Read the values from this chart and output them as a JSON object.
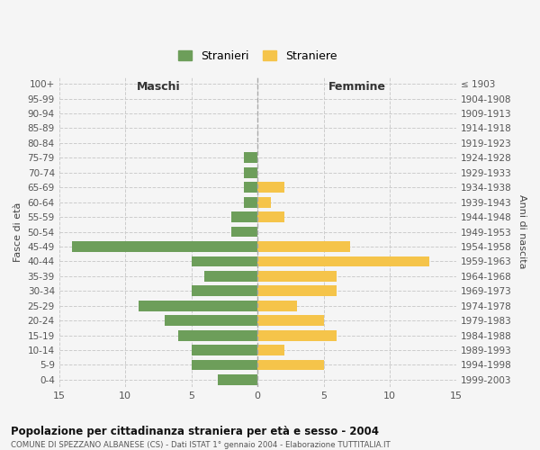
{
  "age_groups": [
    "100+",
    "95-99",
    "90-94",
    "85-89",
    "80-84",
    "75-79",
    "70-74",
    "65-69",
    "60-64",
    "55-59",
    "50-54",
    "45-49",
    "40-44",
    "35-39",
    "30-34",
    "25-29",
    "20-24",
    "15-19",
    "10-14",
    "5-9",
    "0-4"
  ],
  "birth_years": [
    "≤ 1903",
    "1904-1908",
    "1909-1913",
    "1914-1918",
    "1919-1923",
    "1924-1928",
    "1929-1933",
    "1934-1938",
    "1939-1943",
    "1944-1948",
    "1949-1953",
    "1954-1958",
    "1959-1963",
    "1964-1968",
    "1969-1973",
    "1974-1978",
    "1979-1983",
    "1984-1988",
    "1989-1993",
    "1994-1998",
    "1999-2003"
  ],
  "maschi": [
    0,
    0,
    0,
    0,
    0,
    1,
    1,
    1,
    1,
    2,
    2,
    14,
    5,
    4,
    5,
    9,
    7,
    6,
    5,
    5,
    3
  ],
  "femmine": [
    0,
    0,
    0,
    0,
    0,
    0,
    0,
    2,
    1,
    2,
    0,
    7,
    13,
    6,
    6,
    3,
    5,
    6,
    2,
    5,
    0
  ],
  "color_maschi": "#6d9e5a",
  "color_femmine": "#f5c44a",
  "title": "Popolazione per cittadinanza straniera per età e sesso - 2004",
  "subtitle": "COMUNE DI SPEZZANO ALBANESE (CS) - Dati ISTAT 1° gennaio 2004 - Elaborazione TUTTITALIA.IT",
  "xlabel_left": "Maschi",
  "xlabel_right": "Femmine",
  "ylabel_left": "Fasce di età",
  "ylabel_right": "Anni di nascita",
  "xlim": 15,
  "legend_stranieri": "Stranieri",
  "legend_straniere": "Straniere",
  "background_color": "#f5f5f5",
  "grid_color": "#cccccc"
}
